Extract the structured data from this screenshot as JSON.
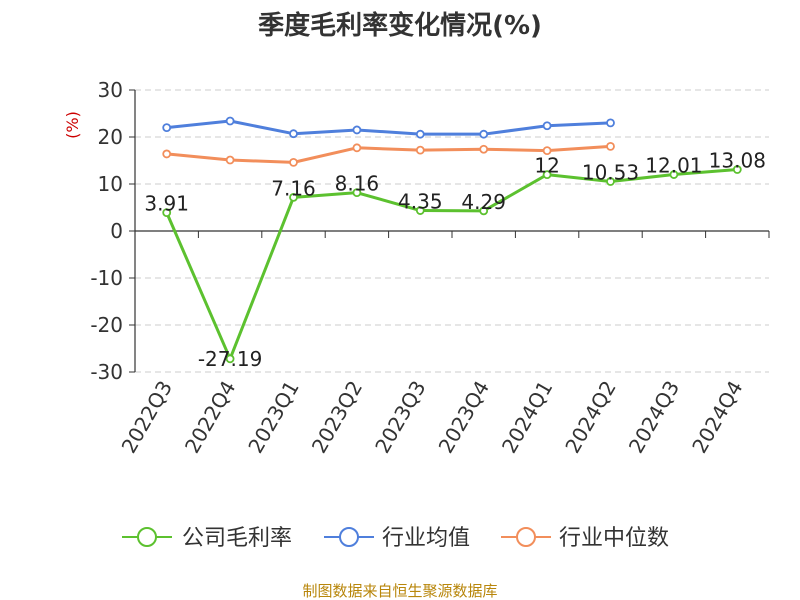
{
  "chart_data": {
    "type": "line",
    "title": "季度毛利率变化情况(%)",
    "ylabel": "(%)",
    "xlabel": "",
    "categories": [
      "2022Q3",
      "2022Q4",
      "2023Q1",
      "2023Q2",
      "2023Q3",
      "2023Q4",
      "2024Q1",
      "2024Q2",
      "2024Q3",
      "2024Q4"
    ],
    "ylim": [
      -30,
      30
    ],
    "yticks": [
      30,
      20,
      10,
      0,
      -10,
      -20,
      -30
    ],
    "ytick_labels": [
      "30",
      "20",
      "10",
      "0",
      "-10",
      "-20",
      "-30"
    ],
    "grid": "horizontal-dashed",
    "legend_position": "bottom",
    "series": [
      {
        "name": "公司毛利率",
        "color": "#5cc12f",
        "values": [
          3.91,
          -27.19,
          7.16,
          8.16,
          4.35,
          4.29,
          12,
          10.53,
          12.01,
          13.08
        ],
        "labels": [
          "3.91",
          "-27.19",
          "7.16",
          "8.16",
          "4.35",
          "4.29",
          "12",
          "10.53",
          "12.01",
          "13.08"
        ]
      },
      {
        "name": "行业均值",
        "color": "#4f7fdc",
        "values": [
          22.0,
          23.4,
          20.7,
          21.5,
          20.6,
          20.6,
          22.4,
          23.0,
          null,
          null
        ]
      },
      {
        "name": "行业中位数",
        "color": "#f28e5b",
        "values": [
          16.4,
          15.1,
          14.6,
          17.7,
          17.2,
          17.4,
          17.1,
          18.0,
          null,
          null
        ]
      }
    ],
    "source": "制图数据来自恒生聚源数据库",
    "colors": {
      "axis": "#333333",
      "grid": "#cccccc",
      "unit_label": "#cc0000",
      "source_text": "#b8860b"
    }
  }
}
